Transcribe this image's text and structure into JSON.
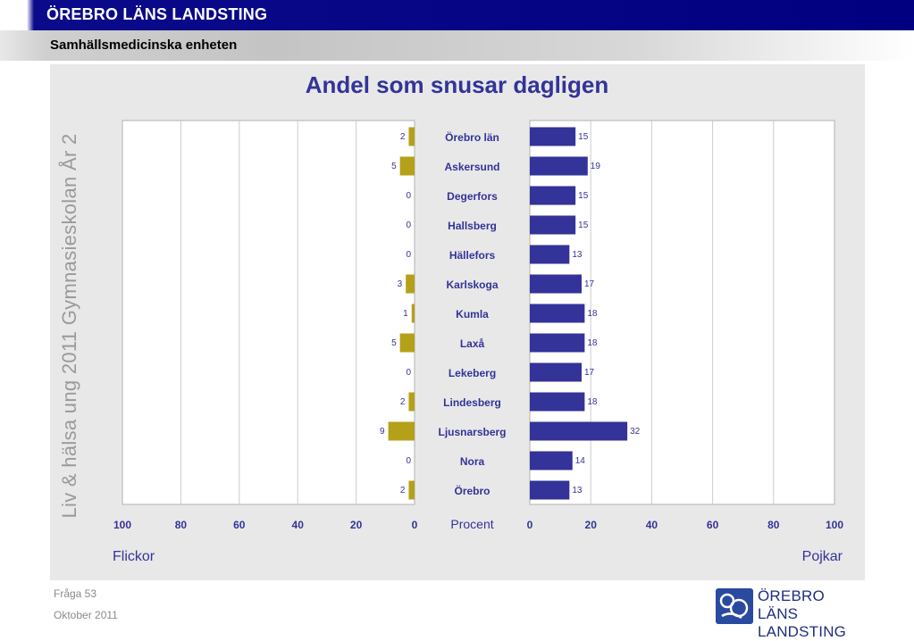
{
  "header": {
    "title": "ÖREBRO LÄNS LANDSTING",
    "subtitle": "Samhällsmedicinska enheten"
  },
  "side_label": "Liv & hälsa ung 2011 Gymnasieskolan År 2",
  "footer": {
    "question": "Fråga 53",
    "date": "Oktober 2011"
  },
  "logo": {
    "line1": "ÖREBRO LÄNS",
    "line2": "LANDSTING"
  },
  "colors": {
    "girls": "#b5a01a",
    "boys": "#333399",
    "text": "#333399",
    "panel": "#e8e8e8"
  },
  "chart_data": {
    "type": "bar",
    "orientation": "horizontal",
    "title": "Andel som snusar dagligen",
    "center_axis_label": "Procent",
    "left_group_label": "Flickor",
    "right_group_label": "Pojkar",
    "xlim": [
      0,
      100
    ],
    "ticks": [
      0,
      20,
      40,
      60,
      80,
      100
    ],
    "grid": true,
    "categories": [
      "Örebro län",
      "Askersund",
      "Degerfors",
      "Hallsberg",
      "Hällefors",
      "Karlskoga",
      "Kumla",
      "Laxå",
      "Lekeberg",
      "Lindesberg",
      "Ljusnarsberg",
      "Nora",
      "Örebro"
    ],
    "series": [
      {
        "name": "Flickor",
        "values": [
          2,
          5,
          0,
          0,
          0,
          3,
          1,
          5,
          0,
          2,
          9,
          0,
          2
        ]
      },
      {
        "name": "Pojkar",
        "values": [
          15,
          19,
          15,
          15,
          13,
          17,
          18,
          18,
          17,
          18,
          32,
          14,
          13
        ]
      }
    ]
  }
}
